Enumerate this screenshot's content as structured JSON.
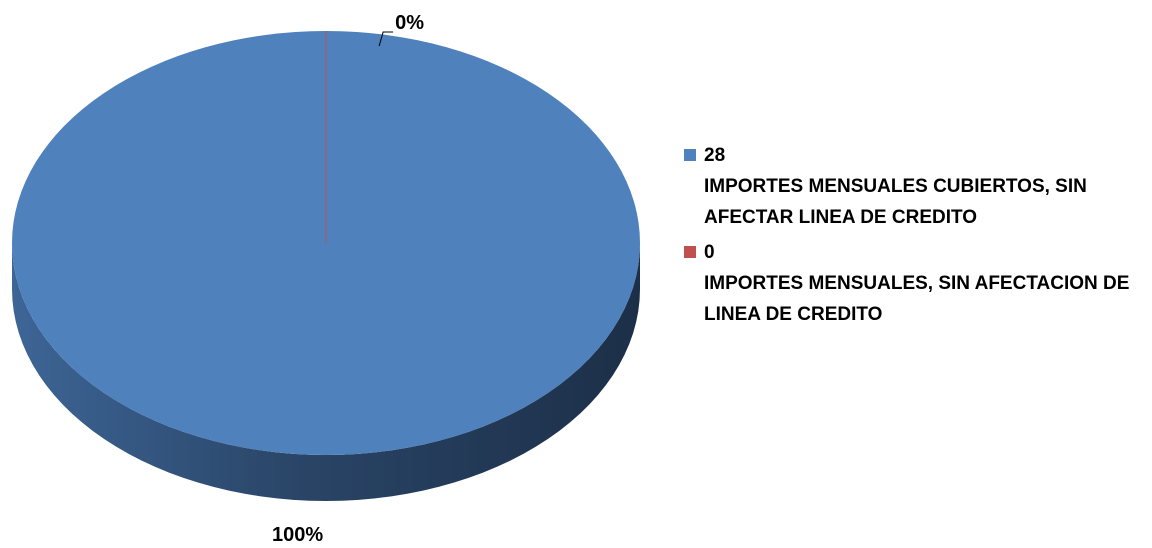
{
  "chart_data": {
    "type": "pie",
    "categories": [
      "28\nIMPORTES MENSUALES CUBIERTOS, SIN AFECTAR LINEA DE CREDITO",
      "0\nIMPORTES MENSUALES, SIN AFECTACION DE LINEA DE CREDITO"
    ],
    "values": [
      100,
      0
    ],
    "value_labels": [
      "100%",
      "0%"
    ],
    "colors": [
      "#4f81bd",
      "#c0504d"
    ],
    "legend": "right"
  }
}
